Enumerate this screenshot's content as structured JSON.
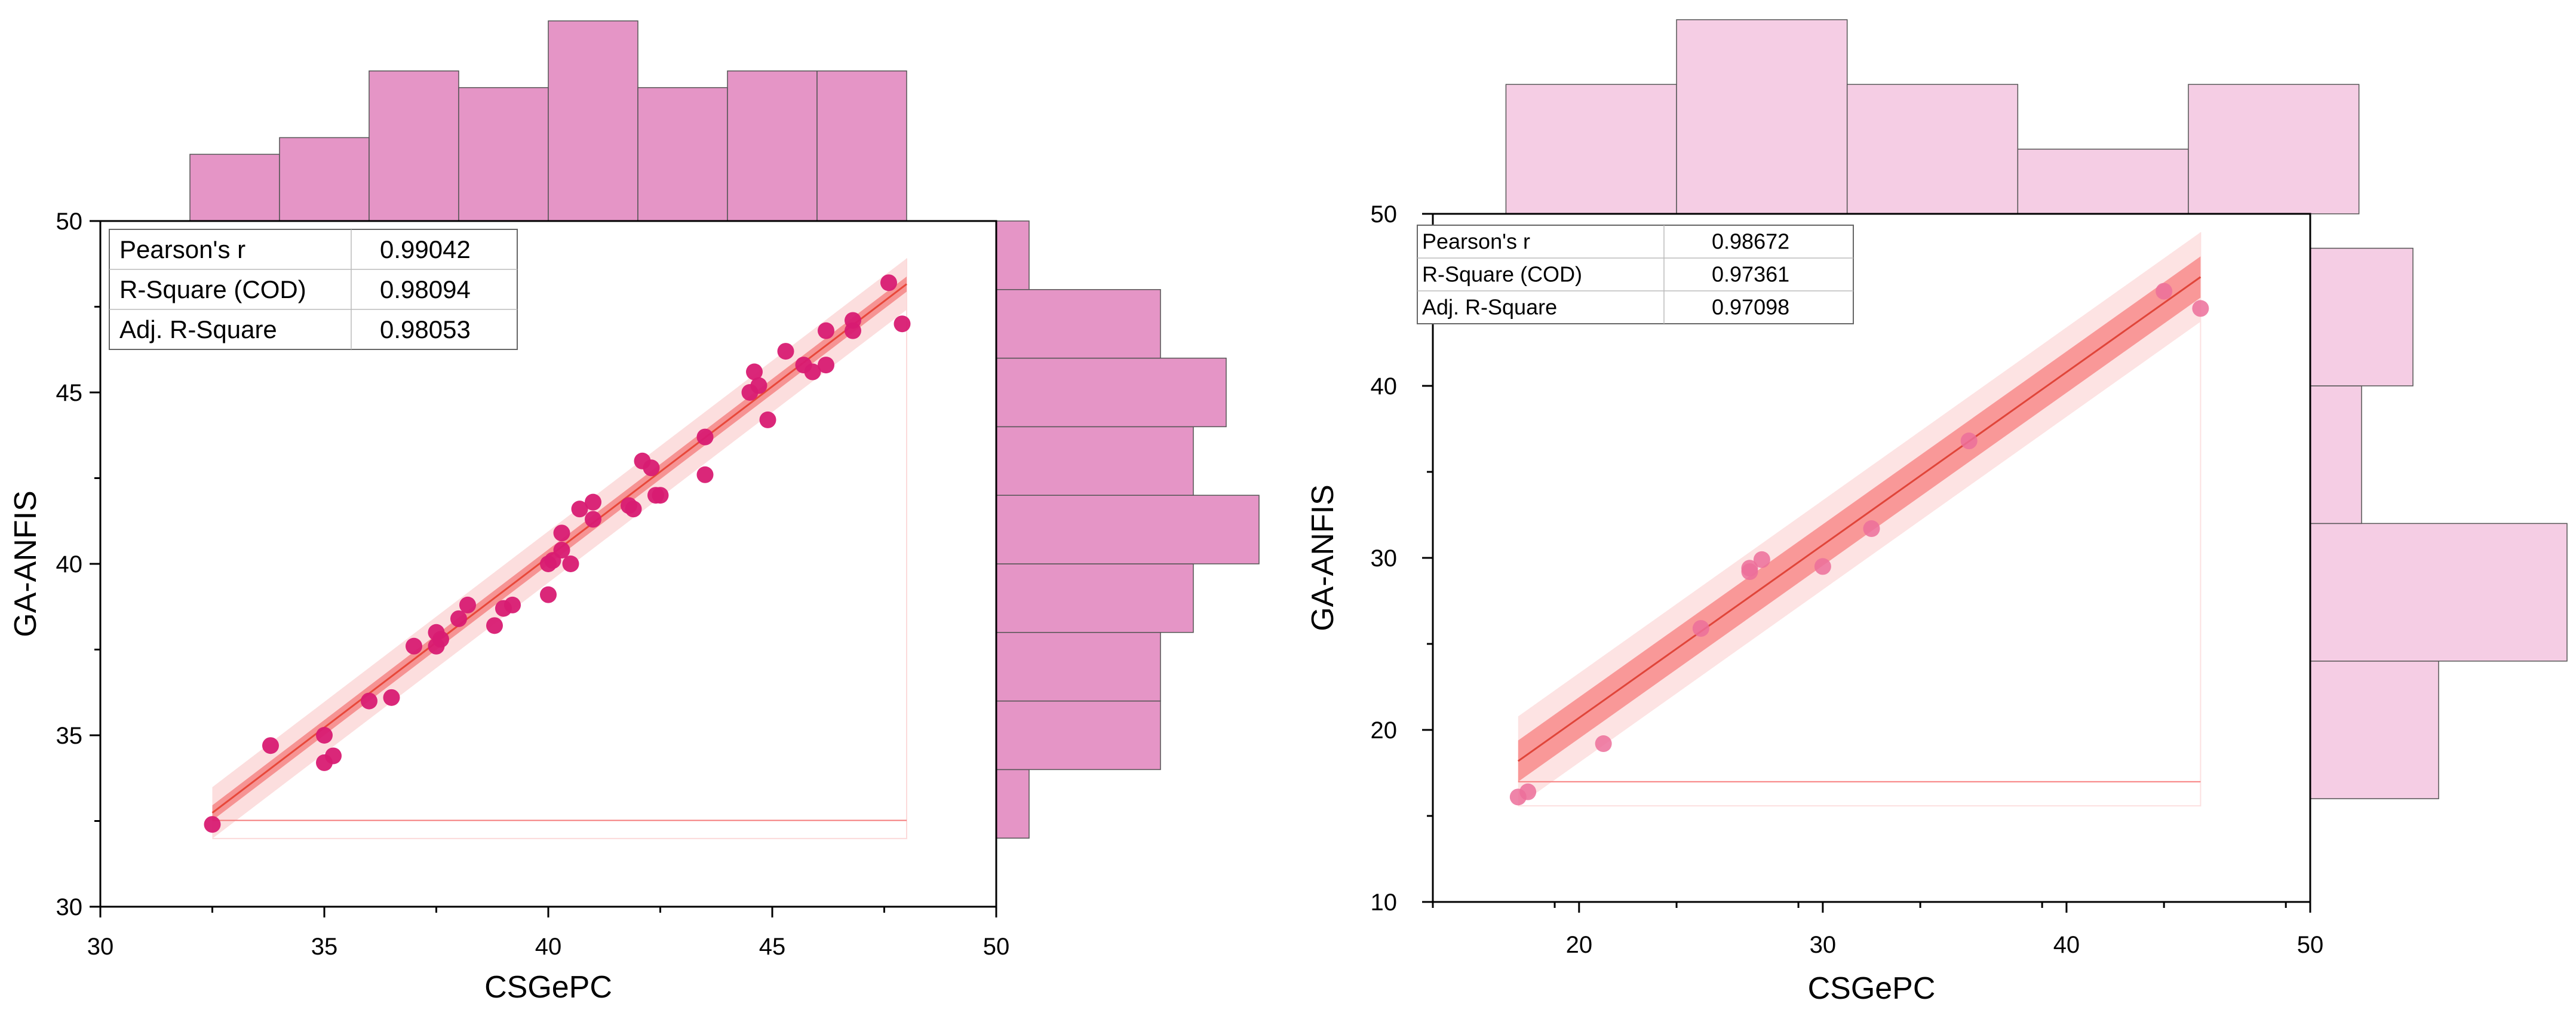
{
  "chart_data": [
    {
      "type": "scatter",
      "xlabel": "CSGePC",
      "ylabel": "GA-ANFIS",
      "xlim": [
        30,
        50
      ],
      "ylim": [
        30,
        50
      ],
      "xticks": [
        "30",
        "35",
        "40",
        "45",
        "50"
      ],
      "yticks": [
        "30",
        "35",
        "40",
        "45",
        "50"
      ],
      "grid": false,
      "colors": {
        "point": "#d81b72",
        "hist": "#e595c6",
        "fit_line": "#e8483a",
        "confidence_band": "#f47a7a",
        "prediction_band": "#fcdada"
      },
      "stats_table": [
        {
          "label": "Pearson's r",
          "value": "0.99042"
        },
        {
          "label": "R-Square (COD)",
          "value": "0.98094"
        },
        {
          "label": "Adj. R-Square",
          "value": "0.98053"
        }
      ],
      "fit": {
        "intercept": 0.4,
        "slope": 0.995,
        "x_range": [
          32.5,
          48
        ]
      },
      "points": [
        [
          32.5,
          32.4
        ],
        [
          33.8,
          34.7
        ],
        [
          35.0,
          35.0
        ],
        [
          35.0,
          34.2
        ],
        [
          35.2,
          34.4
        ],
        [
          36.0,
          36.0
        ],
        [
          36.5,
          36.1
        ],
        [
          37.0,
          37.6
        ],
        [
          37.5,
          38.0
        ],
        [
          37.5,
          37.6
        ],
        [
          37.6,
          37.8
        ],
        [
          38.0,
          38.4
        ],
        [
          38.2,
          38.8
        ],
        [
          38.8,
          38.2
        ],
        [
          39.0,
          38.7
        ],
        [
          39.2,
          38.8
        ],
        [
          40.0,
          40.0
        ],
        [
          40.0,
          39.1
        ],
        [
          40.1,
          40.1
        ],
        [
          40.3,
          40.4
        ],
        [
          40.3,
          40.9
        ],
        [
          40.5,
          40.0
        ],
        [
          40.7,
          41.6
        ],
        [
          41.0,
          41.8
        ],
        [
          41.0,
          41.3
        ],
        [
          41.8,
          41.7
        ],
        [
          41.9,
          41.6
        ],
        [
          42.1,
          43.0
        ],
        [
          42.3,
          42.8
        ],
        [
          42.4,
          42.0
        ],
        [
          42.5,
          42.0
        ],
        [
          43.5,
          43.7
        ],
        [
          43.5,
          42.6
        ],
        [
          44.5,
          45.0
        ],
        [
          44.6,
          45.6
        ],
        [
          44.7,
          45.2
        ],
        [
          44.9,
          44.2
        ],
        [
          45.3,
          46.2
        ],
        [
          45.7,
          45.8
        ],
        [
          45.9,
          45.6
        ],
        [
          46.2,
          46.8
        ],
        [
          46.2,
          45.8
        ],
        [
          46.8,
          47.1
        ],
        [
          46.8,
          46.8
        ],
        [
          47.6,
          48.2
        ],
        [
          47.9,
          47.0
        ]
      ],
      "top_histogram": {
        "bin_edges": [
          32,
          34,
          36,
          38,
          40,
          42,
          44,
          46,
          48
        ],
        "counts": [
          4,
          5,
          9,
          8,
          12,
          8,
          9,
          9
        ]
      },
      "right_histogram": {
        "bin_edges": [
          32,
          34,
          36,
          38,
          40,
          42,
          44,
          46,
          48,
          50
        ],
        "counts": [
          1,
          5,
          5,
          6,
          8,
          6,
          7,
          5,
          1
        ]
      }
    },
    {
      "type": "scatter",
      "xlabel": "CSGePC",
      "ylabel": "GA-ANFIS",
      "xlim": [
        14,
        50
      ],
      "ylim": [
        10,
        50
      ],
      "xticks": [
        "20",
        "30",
        "40",
        "50"
      ],
      "yticks": [
        "10",
        "20",
        "30",
        "40",
        "50"
      ],
      "grid": false,
      "colors": {
        "point": "#ec6f9a",
        "hist": "#f5cde4",
        "fit_line": "#e0453a",
        "confidence_band": "#f77f7f",
        "prediction_band": "#fde0e0"
      },
      "stats_table": [
        {
          "label": "Pearson's r",
          "value": "0.98672"
        },
        {
          "label": "R-Square (COD)",
          "value": "0.97361"
        },
        {
          "label": "Adj. R-Square",
          "value": "0.97098"
        }
      ],
      "fit": {
        "intercept": 0.6,
        "slope": 1.005,
        "x_range": [
          17.5,
          45.5
        ]
      },
      "points": [
        [
          17.5,
          16.1
        ],
        [
          17.9,
          16.4
        ],
        [
          21.0,
          19.2
        ],
        [
          25.0,
          25.9
        ],
        [
          27.0,
          29.2
        ],
        [
          27.0,
          29.4
        ],
        [
          27.5,
          29.9
        ],
        [
          30.0,
          29.5
        ],
        [
          32.0,
          31.7
        ],
        [
          36.0,
          36.8
        ],
        [
          44.0,
          45.5
        ],
        [
          45.5,
          44.5
        ]
      ],
      "top_histogram": {
        "bin_edges": [
          17,
          24,
          31,
          38,
          45,
          52
        ],
        "counts": [
          2,
          3,
          2,
          1,
          2
        ]
      },
      "right_histogram": {
        "bin_edges": [
          16,
          24,
          32,
          40,
          48
        ],
        "counts": [
          1,
          2,
          0.4,
          0.8
        ]
      }
    }
  ]
}
